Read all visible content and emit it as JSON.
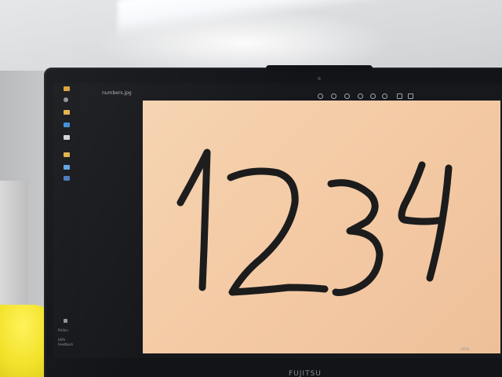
{
  "viewer": {
    "file_name": "numbers.jpg",
    "sidebar_labels": [
      "Prüfen",
      "Hilfe",
      "Feedback"
    ],
    "zoom_level": "100%",
    "toolbar_icons": [
      "rotate-icon",
      "crop-icon",
      "edit-icon",
      "favorite-icon",
      "info-icon",
      "delete-icon",
      "share-icon",
      "more-icon"
    ],
    "sidebar_icons": [
      "home-icon",
      "search-icon",
      "folder-icon",
      "pictures-icon",
      "people-icon",
      "cloud-icon",
      "settings-icon"
    ]
  },
  "handwritten_text": "1234",
  "laptop_brand": "FUJITSU",
  "colors": {
    "canvas_paper": "#f3c9a3",
    "ink": "#1c1c1c",
    "laptop_bezel": "#121418",
    "shirt": "#f2e22a"
  }
}
